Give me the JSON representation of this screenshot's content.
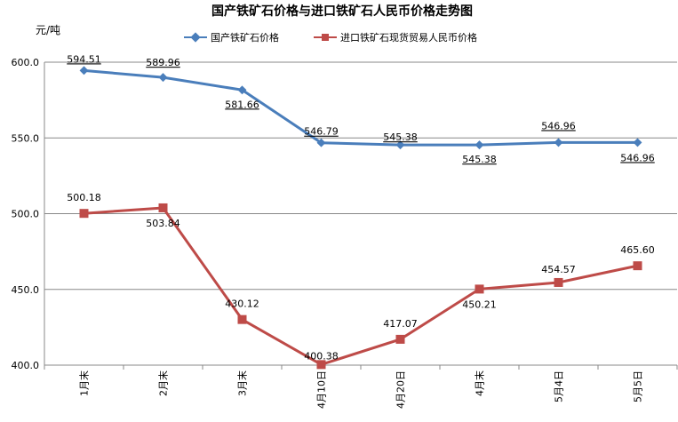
{
  "chart_data": {
    "type": "line",
    "title": "国产铁矿石价格与进口铁矿石人民币价格走势图",
    "ylabel": "元/吨",
    "categories": [
      "1月末",
      "2月末",
      "3月末",
      "4月10日",
      "4月20日",
      "4月末",
      "5月4日",
      "5月5日"
    ],
    "ylim": [
      400.0,
      600.0
    ],
    "yticks": [
      "400.0",
      "450.0",
      "500.0",
      "550.0",
      "600.0"
    ],
    "legend_position": "top",
    "series": [
      {
        "name": "国产铁矿石价格",
        "color": "#4a7ebb",
        "marker": "diamond",
        "values": [
          594.51,
          589.96,
          581.66,
          546.79,
          545.38,
          545.38,
          546.96,
          546.96
        ],
        "labels": [
          "594.51",
          "589.96",
          "581.66",
          "546.79",
          "545.38",
          "545.38",
          "546.96",
          "546.96"
        ]
      },
      {
        "name": "进口铁矿石现货贸易人民币价格",
        "color": "#be4b48",
        "marker": "square",
        "values": [
          500.18,
          503.84,
          430.12,
          400.38,
          417.07,
          450.21,
          454.57,
          465.6
        ],
        "labels": [
          "500.18",
          "503.84",
          "430.12",
          "400.38",
          "417.07",
          "450.21",
          "454.57",
          "465.60"
        ]
      }
    ]
  }
}
